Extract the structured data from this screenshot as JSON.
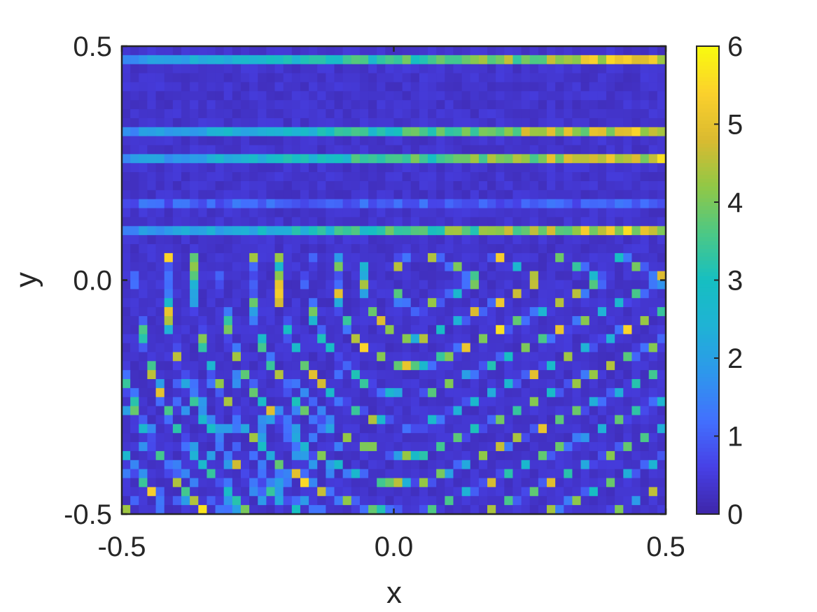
{
  "chart_data": {
    "type": "heatmap",
    "title": "",
    "xlabel": "x",
    "ylabel": "y",
    "xlim": [
      -0.5,
      0.5
    ],
    "ylim": [
      -0.5,
      0.5
    ],
    "x_ticks": [
      "-0.5",
      "0.0",
      "0.5"
    ],
    "y_ticks": [
      "-0.5",
      "0.0",
      "0.5"
    ],
    "colorbar": {
      "range": [
        0,
        6
      ],
      "ticks": [
        "0",
        "1",
        "2",
        "3",
        "4",
        "5",
        "6"
      ],
      "colormap": "parula"
    },
    "grid": {
      "nx": 64,
      "ny": 52
    },
    "description_of_field": "magnitude field with bright stripes: near-horizontal stripes in the upper half (brighter toward the right edge) and concentric chevron / U-shaped stripes opening to the right in the lower half, background near 0",
    "colors": {
      "low": "#3e26a8",
      "mid": "#16bfc1",
      "high": "#f9fb0e",
      "frame": "#262626"
    }
  }
}
